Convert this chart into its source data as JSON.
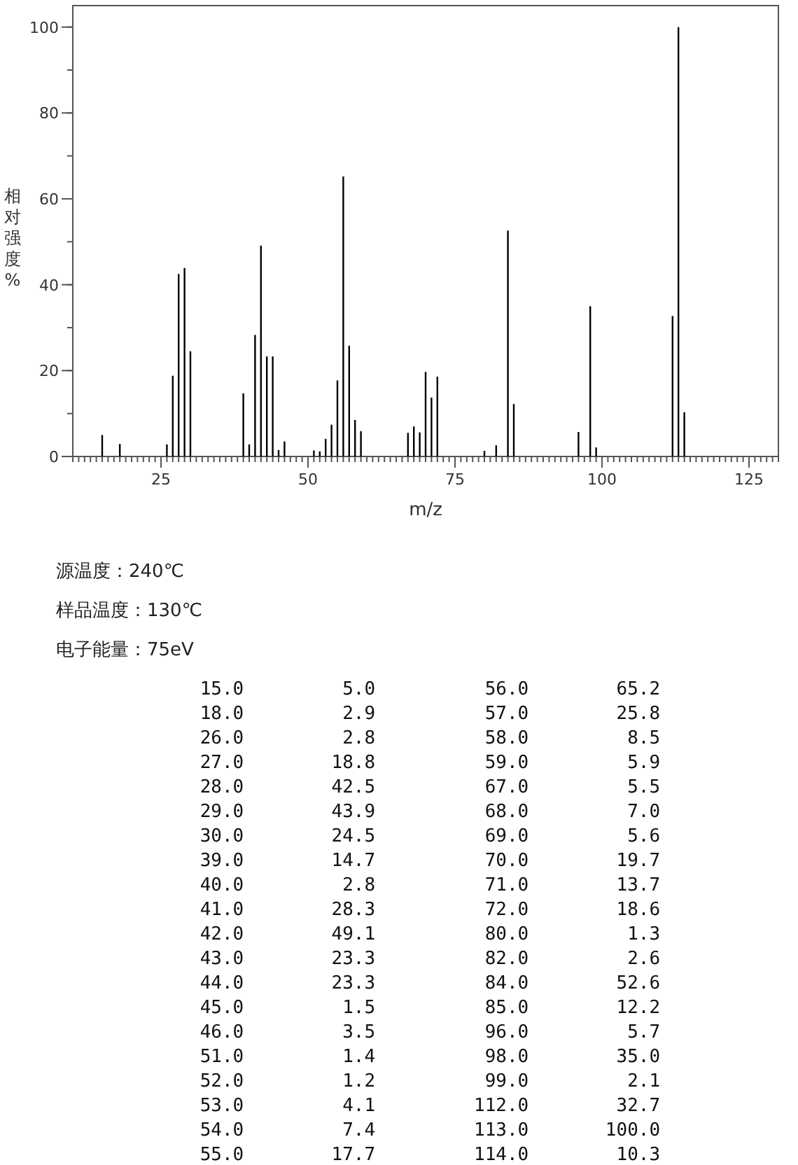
{
  "chart_data": {
    "type": "bar",
    "xlabel": "m/z",
    "ylabel": "相对强度%",
    "color": "#000000",
    "x": [
      15,
      18,
      26,
      27,
      28,
      29,
      30,
      39,
      40,
      41,
      42,
      43,
      44,
      45,
      46,
      51,
      52,
      53,
      54,
      55,
      56,
      57,
      58,
      59,
      67,
      68,
      69,
      70,
      71,
      72,
      80,
      82,
      84,
      85,
      96,
      98,
      99,
      112,
      113,
      114
    ],
    "values": [
      5.0,
      2.9,
      2.8,
      18.8,
      42.5,
      43.9,
      24.5,
      14.7,
      2.8,
      28.3,
      49.1,
      23.3,
      23.3,
      1.5,
      3.5,
      1.4,
      1.2,
      4.1,
      7.4,
      17.7,
      65.2,
      25.8,
      8.5,
      5.9,
      5.5,
      7.0,
      5.6,
      19.7,
      13.7,
      18.6,
      1.3,
      2.6,
      52.6,
      12.2,
      5.7,
      35.0,
      2.1,
      32.7,
      100.0,
      10.3
    ],
    "xlim": [
      10,
      130
    ],
    "xticks": [
      25,
      50,
      75,
      100,
      125
    ],
    "ylim": [
      0,
      105
    ],
    "yticks": [
      0,
      20,
      40,
      60,
      80,
      100
    ],
    "annotations": [
      "源温度：240℃",
      "样品温度：130℃",
      "电子能量：75eV",
      " 15.0         5.0          56.0        65.2",
      " 18.0         2.9          57.0        25.8",
      " 26.0         2.8          58.0         8.5",
      " 27.0        18.8          59.0         5.9",
      " 28.0        42.5          67.0         5.5",
      " 29.0        43.9          68.0         7.0",
      " 30.0        24.5          69.0         5.6",
      " 39.0        14.7          70.0        19.7",
      " 40.0         2.8          71.0        13.7",
      " 41.0        28.3          72.0        18.6",
      " 42.0        49.1          80.0         1.3",
      " 43.0        23.3          82.0         2.6",
      " 44.0        23.3          84.0        52.6",
      " 45.0         1.5          85.0        12.2",
      " 46.0         3.5          96.0         5.7",
      " 51.0         1.4          98.0        35.0",
      " 52.0         1.2          99.0         2.1",
      " 53.0         4.1         112.0        32.7",
      " 54.0         7.4         113.0       100.0",
      " 55.0        17.7         114.0        10.3"
    ]
  }
}
